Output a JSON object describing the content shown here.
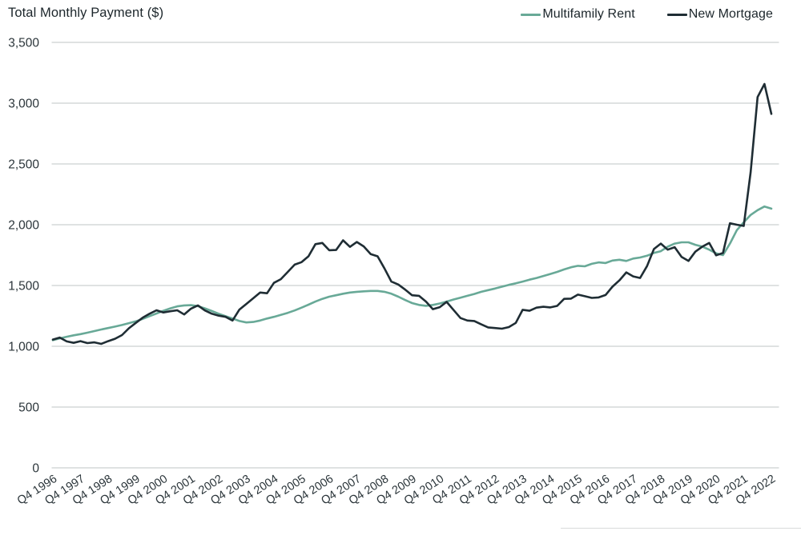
{
  "header": {
    "title": "Total Monthly Payment ($)"
  },
  "legend": [
    {
      "label": "Multifamily Rent",
      "color": "#68a997"
    },
    {
      "label": "New Mortgage",
      "color": "#1f2d34"
    }
  ],
  "colors": {
    "grid": "#ccd1d1",
    "axis_text": "#2b353a",
    "title_text": "#1c262b",
    "divider": "#d8dada"
  },
  "chart_data": {
    "type": "line",
    "title": "Total Monthly Payment ($)",
    "ylabel": "Total Monthly Payment ($)",
    "ylim": [
      0,
      3500
    ],
    "y_ticks": [
      0,
      500,
      1000,
      1500,
      2000,
      2500,
      3000,
      3500
    ],
    "grid": "horizontal",
    "legend_position": "top-right",
    "x_frequency": "quarterly",
    "x_range": [
      "Q4 1996",
      "Q4 2022"
    ],
    "x_tick_labels": [
      "Q4 1996",
      "Q4 1997",
      "Q4 1998",
      "Q4 1999",
      "Q4 2000",
      "Q4 2001",
      "Q4 2002",
      "Q4 2003",
      "Q4 2004",
      "Q4 2005",
      "Q4 2006",
      "Q4 2007",
      "Q4 2008",
      "Q4 2009",
      "Q4 2010",
      "Q4 2011",
      "Q4 2012",
      "Q4 2013",
      "Q4 2014",
      "Q4 2015",
      "Q4 2016",
      "Q4 2017",
      "Q4 2018",
      "Q4 2019",
      "Q4 2020",
      "Q4 2021",
      "Q4 2022"
    ],
    "series": [
      {
        "name": "Multifamily Rent",
        "color": "#68a997",
        "values": [
          1050,
          1065,
          1078,
          1090,
          1100,
          1112,
          1125,
          1138,
          1150,
          1162,
          1175,
          1190,
          1205,
          1225,
          1248,
          1270,
          1292,
          1312,
          1328,
          1336,
          1338,
          1330,
          1312,
          1290,
          1268,
          1248,
          1228,
          1208,
          1196,
          1200,
          1212,
          1228,
          1242,
          1258,
          1275,
          1295,
          1318,
          1342,
          1368,
          1390,
          1408,
          1420,
          1432,
          1442,
          1448,
          1452,
          1455,
          1455,
          1448,
          1432,
          1408,
          1380,
          1355,
          1340,
          1333,
          1340,
          1352,
          1368,
          1385,
          1400,
          1415,
          1430,
          1448,
          1462,
          1475,
          1490,
          1505,
          1518,
          1532,
          1548,
          1562,
          1578,
          1595,
          1612,
          1632,
          1650,
          1662,
          1658,
          1678,
          1690,
          1685,
          1705,
          1712,
          1702,
          1722,
          1730,
          1745,
          1768,
          1782,
          1820,
          1845,
          1855,
          1855,
          1835,
          1820,
          1795,
          1765,
          1750,
          1845,
          1955,
          2020,
          2080,
          2120,
          2150,
          2132
        ]
      },
      {
        "name": "New Mortgage",
        "color": "#1f2d34",
        "values": [
          1055,
          1072,
          1040,
          1028,
          1042,
          1026,
          1032,
          1020,
          1042,
          1062,
          1092,
          1148,
          1192,
          1235,
          1268,
          1296,
          1278,
          1288,
          1296,
          1262,
          1310,
          1336,
          1295,
          1268,
          1252,
          1242,
          1212,
          1302,
          1348,
          1395,
          1442,
          1436,
          1522,
          1552,
          1612,
          1672,
          1692,
          1740,
          1840,
          1850,
          1790,
          1792,
          1872,
          1818,
          1858,
          1822,
          1758,
          1740,
          1640,
          1532,
          1508,
          1466,
          1420,
          1415,
          1368,
          1305,
          1322,
          1365,
          1298,
          1232,
          1212,
          1208,
          1180,
          1155,
          1150,
          1145,
          1158,
          1192,
          1300,
          1292,
          1318,
          1325,
          1320,
          1332,
          1390,
          1392,
          1425,
          1412,
          1398,
          1402,
          1422,
          1490,
          1542,
          1608,
          1575,
          1562,
          1660,
          1800,
          1845,
          1795,
          1815,
          1735,
          1702,
          1778,
          1820,
          1850,
          1748,
          1768,
          2012,
          2000,
          1990,
          2430,
          3050,
          3158,
          2912
        ]
      }
    ]
  }
}
